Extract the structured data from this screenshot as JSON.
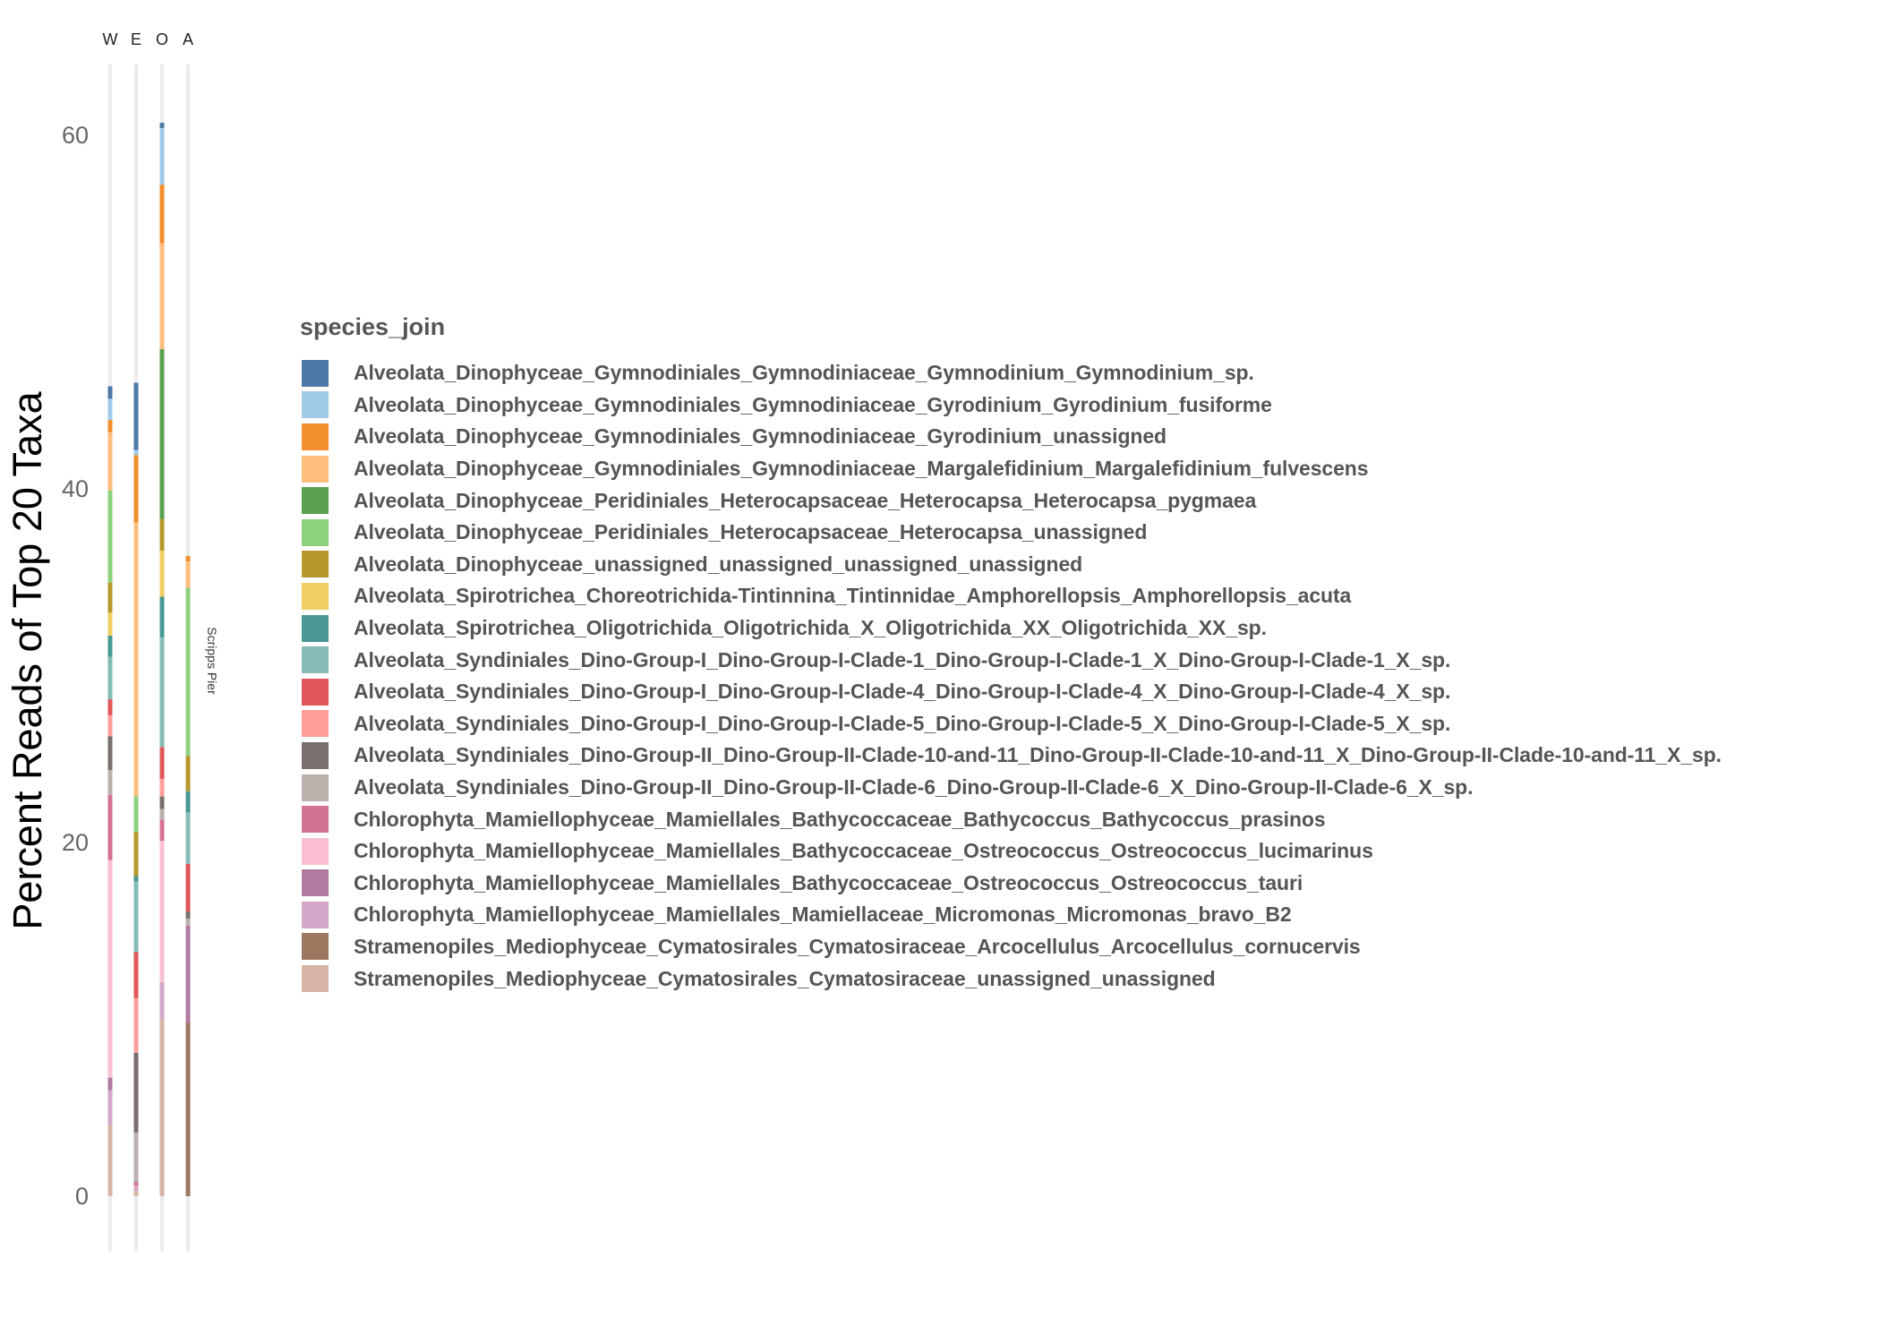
{
  "chart_data": {
    "type": "bar",
    "stacked": true,
    "ylabel": "Percent Reads of Top 20 Taxa",
    "xlabel": "",
    "ylim": [
      -3,
      65
    ],
    "yticks": [
      0,
      20,
      40,
      60
    ],
    "facet_labels": [
      "W",
      "E",
      "O",
      "A"
    ],
    "strip_label": "Scripps Pier",
    "grid": "minimal",
    "legend_title": "species_join",
    "legend_position": "right",
    "series": [
      {
        "name": "Alveolata_Dinophyceae_Gymnodiniales_Gymnodiniaceae_Gymnodinium_Gymnodinium_sp.",
        "color": "#4E79A7",
        "values": [
          0.7,
          3.8,
          0.3,
          0
        ]
      },
      {
        "name": "Alveolata_Dinophyceae_Gymnodiniales_Gymnodiniaceae_Gyrodinium_Gyrodinium_fusiforme",
        "color": "#A0CBE8",
        "values": [
          1.2,
          0.3,
          3.2,
          0
        ]
      },
      {
        "name": "Alveolata_Dinophyceae_Gymnodiniales_Gymnodiniaceae_Gyrodinium_unassigned",
        "color": "#F28E2B",
        "values": [
          0.7,
          3.8,
          3.3,
          0.3
        ]
      },
      {
        "name": "Alveolata_Dinophyceae_Gymnodiniales_Gymnodiniaceae_Margalefidinium_Margalefidinium_fulvescens",
        "color": "#FFBE7D",
        "values": [
          3.3,
          15.5,
          6.0,
          1.5
        ]
      },
      {
        "name": "Alveolata_Dinophyceae_Peridiniales_Heterocapsaceae_Heterocapsa_Heterocapsa_pygmaea",
        "color": "#59A14F",
        "values": [
          0,
          0,
          9.6,
          0
        ]
      },
      {
        "name": "Alveolata_Dinophyceae_Peridiniales_Heterocapsaceae_Heterocapsa_unassigned",
        "color": "#8CD17D",
        "values": [
          5.2,
          2.0,
          0,
          9.5
        ]
      },
      {
        "name": "Alveolata_Dinophyceae_unassigned_unassigned_unassigned_unassigned",
        "color": "#B6992D",
        "values": [
          1.7,
          2.5,
          1.8,
          2.0
        ]
      },
      {
        "name": "Alveolata_Spirotrichea_Choreotrichida-Tintinnina_Tintinnidae_Amphorellopsis_Amphorellopsis_acuta",
        "color": "#F1CE63",
        "values": [
          1.3,
          0,
          2.6,
          0
        ]
      },
      {
        "name": "Alveolata_Spirotrichea_Oligotrichida_Oligotrichida_X_Oligotrichida_XX_Oligotrichida_XX_sp.",
        "color": "#499894",
        "values": [
          1.2,
          0.3,
          2.3,
          1.2
        ]
      },
      {
        "name": "Alveolata_Syndiniales_Dino-Group-I_Dino-Group-I-Clade-1_Dino-Group-I-Clade-1_X_Dino-Group-I-Clade-1_X_sp.",
        "color": "#86BCB6",
        "values": [
          2.4,
          4.0,
          6.2,
          2.9
        ]
      },
      {
        "name": "Alveolata_Syndiniales_Dino-Group-I_Dino-Group-I-Clade-4_Dino-Group-I-Clade-4_X_Dino-Group-I-Clade-4_X_sp.",
        "color": "#E15759",
        "values": [
          0.9,
          2.6,
          1.8,
          2.7
        ]
      },
      {
        "name": "Alveolata_Syndiniales_Dino-Group-I_Dino-Group-I-Clade-5_Dino-Group-I-Clade-5_X_Dino-Group-I-Clade-5_X_sp.",
        "color": "#FF9D9A",
        "values": [
          1.2,
          3.1,
          1.0,
          0
        ]
      },
      {
        "name": "Alveolata_Syndiniales_Dino-Group-II_Dino-Group-II-Clade-10-and-11_Dino-Group-II-Clade-10-and-11_X_Dino-Group-II-Clade-10-and-11_X_sp.",
        "color": "#79706E",
        "values": [
          1.9,
          4.5,
          0.7,
          0.4
        ]
      },
      {
        "name": "Alveolata_Syndiniales_Dino-Group-II_Dino-Group-II-Clade-6_Dino-Group-II-Clade-6_X_Dino-Group-II-Clade-6_X_sp.",
        "color": "#BAB0AC",
        "values": [
          1.4,
          2.8,
          0.6,
          0.4
        ]
      },
      {
        "name": "Chlorophyta_Mamiellophyceae_Mamiellales_Bathycoccaceae_Bathycoccus_Bathycoccus_prasinos",
        "color": "#D37295",
        "values": [
          3.7,
          0.2,
          1.2,
          0
        ]
      },
      {
        "name": "Chlorophyta_Mamiellophyceae_Mamiellales_Bathycoccaceae_Ostreococcus_Ostreococcus_lucimarinus",
        "color": "#FABFD2",
        "values": [
          12.3,
          0,
          8.0,
          0
        ]
      },
      {
        "name": "Chlorophyta_Mamiellophyceae_Mamiellales_Bathycoccaceae_Ostreococcus_Ostreococcus_tauri",
        "color": "#B07AA1",
        "values": [
          0.7,
          0,
          0,
          5.5
        ]
      },
      {
        "name": "Chlorophyta_Mamiellophyceae_Mamiellales_Mamiellaceae_Micromonas_Micromonas_bravo_B2",
        "color": "#D4A6C8",
        "values": [
          2.0,
          0.3,
          2.1,
          0
        ]
      },
      {
        "name": "Stramenopiles_Mediophyceae_Cymatosirales_Cymatosiraceae_Arcocellulus_Arcocellulus_cornucervis",
        "color": "#9D7660",
        "values": [
          0,
          0,
          0,
          9.8
        ]
      },
      {
        "name": "Stramenopiles_Mediophyceae_Cymatosirales_Cymatosiraceae_unassigned_unassigned",
        "color": "#D7B5A6",
        "values": [
          4.0,
          0.3,
          10.0,
          0
        ]
      }
    ]
  }
}
